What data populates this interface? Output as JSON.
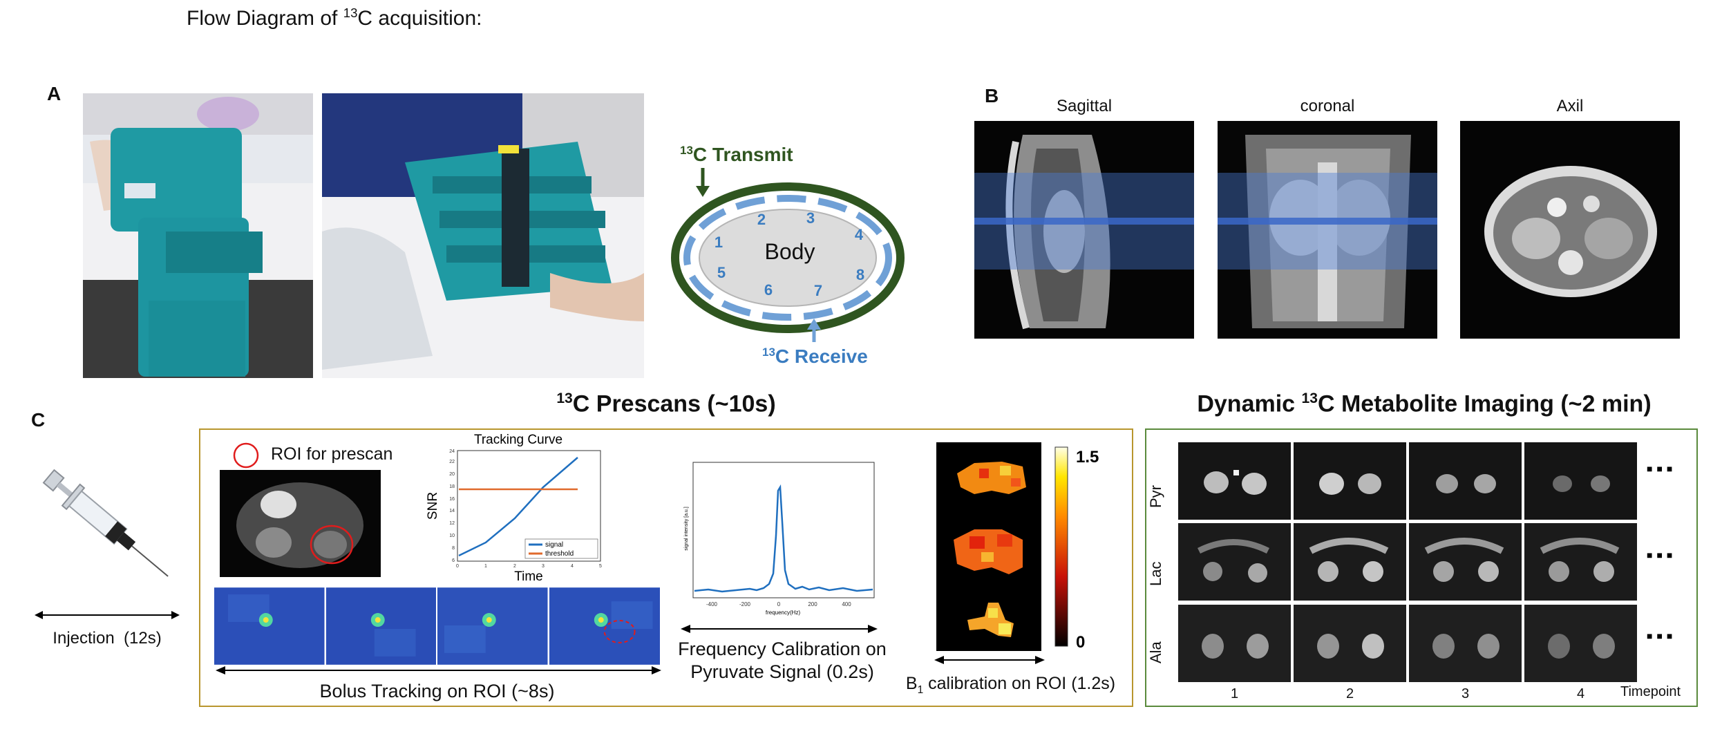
{
  "header": {
    "prefix": "Flow Diagram of ",
    "sup": "13",
    "suffix": "C acquisition:"
  },
  "panel_a": {
    "letter": "A",
    "transmit": {
      "sup": "13",
      "text": "C Transmit"
    },
    "receive": {
      "sup": "13",
      "text": "C Receive"
    },
    "body_label": "Body",
    "coil_numbers": [
      "1",
      "2",
      "3",
      "4",
      "5",
      "6",
      "7",
      "8"
    ],
    "colors": {
      "transmit": "#2f5520",
      "receive": "#6fa0d6",
      "receive_text": "#3a7cc0",
      "body": "#dcdcdc"
    }
  },
  "panel_b": {
    "letter": "B",
    "views": [
      "Sagittal",
      "coronal",
      "Axil"
    ],
    "slab_color": "#4a7bd6"
  },
  "panel_c": {
    "letter": "C",
    "injection_label": "Injection  (12s)",
    "prescans_title": {
      "sup": "13",
      "text": "C Prescans (~10s)"
    },
    "dynamic_title": {
      "prefix": "Dynamic ",
      "sup": "13",
      "text": "C Metabolite Imaging (~2 min)"
    },
    "roi_label": "ROI for prescan",
    "tracking": {
      "title": "Tracking Curve",
      "xlabel": "Time",
      "ylabel": "SNR",
      "legend": [
        "signal",
        "threshold"
      ],
      "xticks": [
        "0",
        "1",
        "2",
        "3",
        "4",
        "5"
      ],
      "yticks": [
        "6",
        "8",
        "10",
        "12",
        "14",
        "16",
        "18",
        "20",
        "22",
        "24"
      ]
    },
    "bolus_label": "Bolus Tracking on ROI (~8s)",
    "freq": {
      "caption_line1": "Frequency Calibration on",
      "caption_line2": "Pyruvate Signal (0.2s)",
      "xlabel": "frequency(Hz)",
      "ylabel": "signal intensity [a.u.]",
      "xticks": [
        "-400",
        "-200",
        "0",
        "200",
        "400"
      ]
    },
    "b1": {
      "caption_prefix": "B",
      "caption_sub": "1",
      "caption_suffix": " calibration on ROI (1.2s)",
      "scale_max": "1.5",
      "scale_min": "0"
    },
    "metabolites": [
      "Pyr",
      "Lac",
      "Ala"
    ],
    "timepoints": [
      "1",
      "2",
      "3",
      "4"
    ],
    "timepoint_label": "Timepoint",
    "ellipsis": "■■■",
    "colors": {
      "prescan_border": "#b8962e",
      "dynamic_border": "#5a8a3c",
      "signal": "#1f6fbf",
      "threshold": "#e06a2c"
    }
  }
}
